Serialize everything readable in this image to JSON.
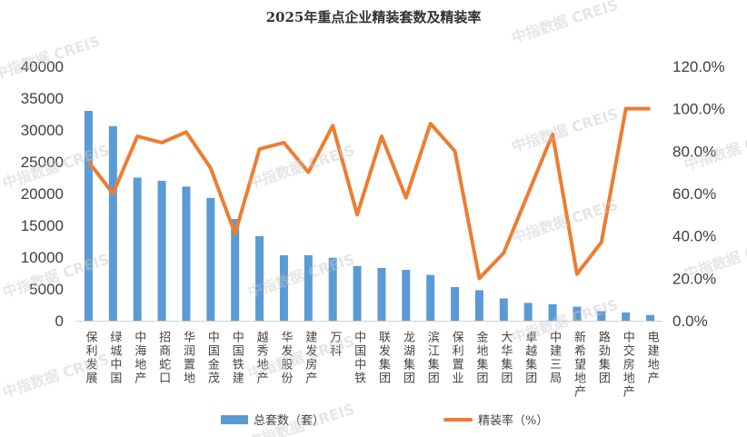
{
  "watermark": "中指数据 CREIS",
  "chart_data": {
    "type": "bar+line",
    "title": "2025年重点企业精装套数及精装率",
    "categories": [
      "保利发展",
      "绿城中国",
      "中海地产",
      "招商蛇口",
      "华润置地",
      "中国金茂",
      "中国铁建",
      "越秀地产",
      "华发股份",
      "建发房产",
      "万科",
      "中国中铁",
      "联发集团",
      "龙湖集团",
      "滨江集团",
      "保利置业",
      "金地集团",
      "大华集团",
      "卓越集团",
      "中建三局",
      "新希望地产",
      "路劲集团",
      "中交房地产",
      "电建地产"
    ],
    "series": [
      {
        "name": "总套数（套）",
        "type": "bar",
        "axis": "left",
        "color": "#5B9BD5",
        "values": [
          33000,
          30600,
          22500,
          22000,
          21100,
          19300,
          16000,
          13300,
          10300,
          10300,
          9900,
          8600,
          8300,
          8000,
          7200,
          5300,
          4800,
          3500,
          2800,
          2600,
          2200,
          1500,
          1300,
          900
        ]
      },
      {
        "name": "精装率（%）",
        "type": "line",
        "axis": "right",
        "color": "#ED7D31",
        "values": [
          75,
          60,
          87,
          84,
          89,
          72,
          41,
          81,
          84,
          70,
          92,
          50,
          87,
          58,
          93,
          80,
          20,
          32,
          60,
          88,
          22,
          37,
          100,
          100
        ]
      }
    ],
    "ylim_left": [
      0,
      40000
    ],
    "yticks_left": [
      "0",
      "5000",
      "10000",
      "15000",
      "20000",
      "25000",
      "30000",
      "35000",
      "40000"
    ],
    "ylim_right": [
      0,
      120
    ],
    "yticks_right": [
      "0.0%",
      "20.0%",
      "40.0%",
      "60.0%",
      "80.0%",
      "100.0%",
      "120.0%"
    ],
    "grid": false,
    "legend": "bottom"
  }
}
